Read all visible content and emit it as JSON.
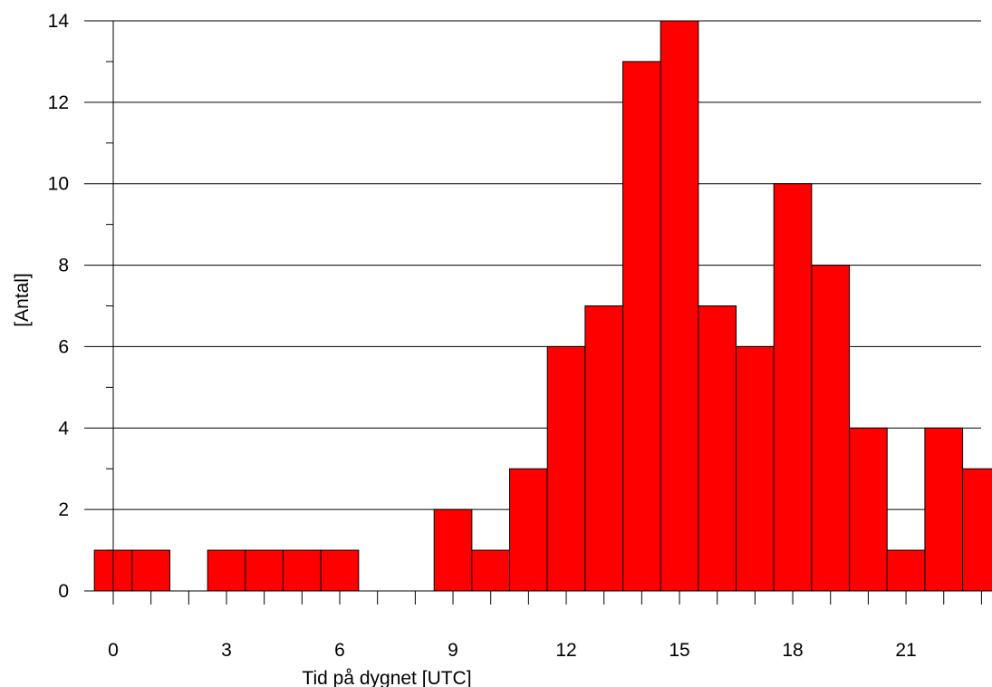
{
  "chart_data": {
    "type": "bar",
    "x": [
      0,
      1,
      2,
      3,
      4,
      5,
      6,
      7,
      8,
      9,
      10,
      11,
      12,
      13,
      14,
      15,
      16,
      17,
      18,
      19,
      20,
      21,
      22,
      23
    ],
    "values": [
      1,
      1,
      0,
      1,
      1,
      1,
      1,
      0,
      0,
      2,
      1,
      3,
      6,
      7,
      13,
      14,
      7,
      6,
      10,
      8,
      4,
      1,
      4,
      3
    ],
    "xlabel": "Tid på dygnet [UTC]",
    "ylabel": "[Antal]",
    "xticks": [
      "0",
      "3",
      "6",
      "9",
      "12",
      "15",
      "18",
      "21"
    ],
    "yticks": [
      "0",
      "2",
      "4",
      "6",
      "8",
      "10",
      "12",
      "14"
    ],
    "ylim": [
      0,
      14
    ],
    "grid": "horizontal",
    "bar_color": "#ff0000",
    "edge_color": "#000000"
  }
}
